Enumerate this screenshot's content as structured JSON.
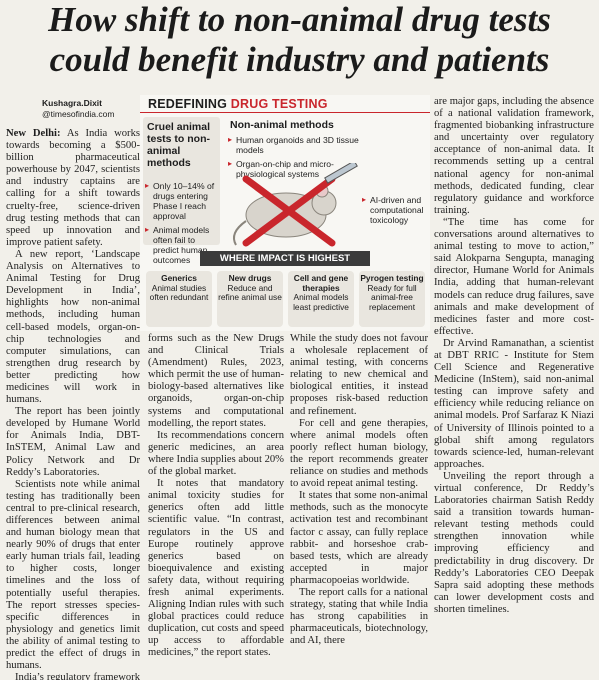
{
  "headline": [
    "How shift to non-animal drug tests",
    "could benefit industry and patients"
  ],
  "byline": {
    "author": "Kushagra.Dixit",
    "handle": "@timesofindia.com"
  },
  "dateline": "New Delhi:",
  "infographic": {
    "title": [
      "REDEFINING",
      "DRUG TESTING"
    ],
    "left_panel": {
      "heading": "Cruel animal tests to non-animal methods",
      "bullets": [
        "Only 10–14% of drugs entering Phase I reach approval",
        "Animal models often fail to predict human outcomes"
      ]
    },
    "right_panel": {
      "heading": "Non-animal methods",
      "bullets": [
        "Human organoids and 3D tissue models",
        "Organ-on-chip and micro-physiological systems",
        "AI-driven and computational toxicology"
      ]
    },
    "impact": {
      "heading": "WHERE IMPACT IS HIGHEST",
      "cards": [
        {
          "title": "Generics",
          "text": "Animal studies often redundant"
        },
        {
          "title": "New drugs",
          "text": "Reduce and refine animal use"
        },
        {
          "title": "Cell and gene therapies",
          "text": "Animal models least predictive"
        },
        {
          "title": "Pyrogen testing",
          "text": "Ready for full animal-free replacement"
        }
      ]
    }
  },
  "columns": [
    [
      "As India works towards becoming a $500-billion pharmaceutical powerhouse by 2047, scientists and industry captains are calling for a shift towards cruelty-free, science-driven drug testing methods that can speed up innovation and improve patient safety.",
      "A new report, ‘Landscape Analysis on Alternatives to Animal Testing for Drug Development in India’, highlights how non-animal methods, including human cell-based models, organ-on-chip technologies and computer simulations, can strengthen drug research by better predicting how medicines will work in humans.",
      "The report has been jointly developed by Humane World for Animals India, DBT-InSTEM, Animal Law and Policy Network and Dr Reddy’s Laboratories.",
      "Scientists note while animal testing has traditionally been central to pre-clinical research, differences between animal and human biology mean that nearly 90% of drugs that enter early human trials fail, leading to higher costs, longer timelines and the loss of potentially useful therapies. The report stresses species-specific differences in physiology and genetics limit the ability of animal testing to predict the effect of drugs in humans.",
      "India’s regulatory framework has reached an “inflection point”, driven by re-"
    ],
    [
      "forms such as the New Drugs and Clinical Trials (Amendment) Rules, 2023, which permit the use of human-biology-based alternatives like organoids, organ-on-chip systems and computational modelling, the report states.",
      "Its recommendations concern generic medicines, an area where India supplies about 20% of the global market.",
      "It notes that mandatory animal toxicity studies for generics often add little scientific value. “In contrast, regulators in the US and Europe routinely approve generics based on bioequivalence and existing safety data, without requiring fresh animal experiments. Aligning Indian rules with such global practices could reduce duplication, cut costs and speed up access to affordable medicines,” the report states."
    ],
    [
      "While the study does not favour a wholesale replacement of animal testing, with concerns relating to new chemical and biological entities, it instead proposes risk-based reduction and refinement.",
      "For cell and gene therapies, where animal models often poorly reflect human biology, the report recommends greater reliance on studies and methods to avoid repeat animal testing.",
      "It states that some non-animal methods, such as the monocyte activation test and recombinant factor c assay, can fully replace rabbit- and horseshoe crab-based tests, which are already accepted in major pharmacopoeias worldwide.",
      "The report calls for a national strategy, stating that while India has strong capabilities in pharmaceuticals, biotechnology, and AI, there"
    ],
    [
      "are major gaps, including the absence of a national validation framework, fragmented biobanking infrastructure and uncertainty over regulatory acceptance of non-animal data. It recommends setting up a central national agency for non-animal methods, dedicated funding, clear regulatory guidance and workforce training.",
      "“The time has come for conversations around alternatives to animal testing to move to action,” said Alokparna Sengupta, managing director, Humane World for Animals India, adding that human-relevant models can reduce drug failures, save animals and make development of medicines faster and more cost-effective.",
      "Dr Arvind Ramanathan, a scientist at DBT RRIC - Institute for Stem Cell Science and Regenerative Medicine (InStem), said non-animal testing can improve safety and efficiency while reducing reliance on animal models. Prof Sarfaraz K Niazi of University of Illinois pointed to a global shift among regulators towards science-led, human-relevant approaches.",
      "Unveiling the report through a virtual conference, Dr Reddy’s Laboratories chairman Satish Reddy said a transition towards human-relevant testing methods could strengthen innovation while improving efficiency and predictability in drug discovery. Dr Reddy’s Laboratories CEO Deepak Sapra said adopting these methods can lower development costs and shorten timelines."
    ]
  ]
}
